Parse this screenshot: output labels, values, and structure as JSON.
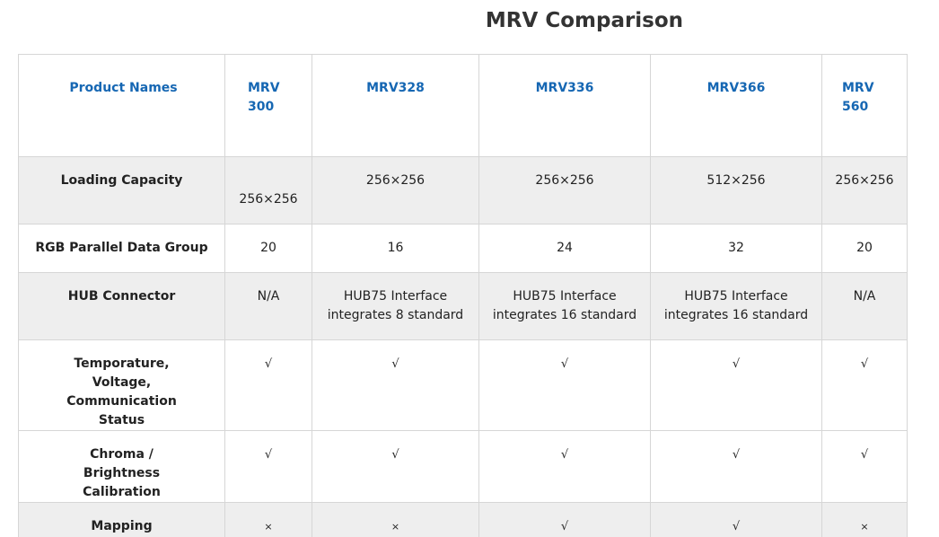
{
  "title": "MRV Comparison",
  "header": {
    "label": "Product Names",
    "products": [
      "MRV 300",
      "MRV328",
      "MRV336",
      "MRV366",
      "MRV 560"
    ]
  },
  "rows": [
    {
      "label": "Loading Capacity",
      "values": [
        "256×256",
        "256×256",
        "256×256",
        "512×256",
        "256×256"
      ]
    },
    {
      "label": "RGB Parallel Data Group",
      "values": [
        "20",
        "16",
        "24",
        "32",
        "20"
      ]
    },
    {
      "label": "HUB Connector",
      "values": [
        "N/A",
        "HUB75 Interface integrates 8 standard",
        "HUB75 Interface integrates 16 standard",
        "HUB75 Interface integrates 16 standard",
        "N/A"
      ]
    },
    {
      "label": "Temporature, Voltage, Communication Status",
      "values": [
        "√",
        "√",
        "√",
        "√",
        "√"
      ]
    },
    {
      "label": "Chroma / Brightness Calibration",
      "values": [
        "√",
        "√",
        "√",
        "√",
        "√"
      ]
    },
    {
      "label": "Mapping",
      "values": [
        "×",
        "×",
        "√",
        "√",
        "×"
      ]
    }
  ]
}
